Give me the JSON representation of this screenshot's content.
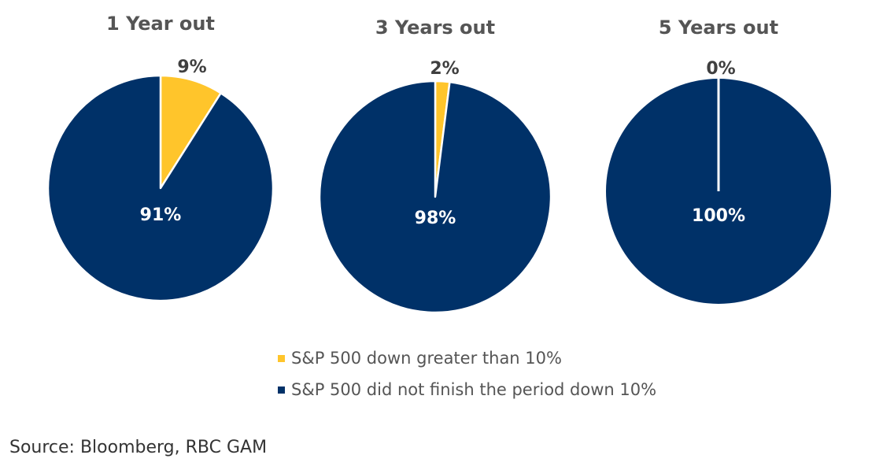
{
  "chart_data": [
    {
      "type": "pie",
      "title": "1 Year out",
      "slices": [
        {
          "label": "S&P 500 down greater than 10%",
          "value": 9,
          "display": "9%"
        },
        {
          "label": "S&P 500 did not finish the period down 10%",
          "value": 91,
          "display": "91%"
        }
      ]
    },
    {
      "type": "pie",
      "title": "3 Years out",
      "slices": [
        {
          "label": "S&P 500 down greater than 10%",
          "value": 2,
          "display": "2%"
        },
        {
          "label": "S&P 500 did not finish the period down 10%",
          "value": 98,
          "display": "98%"
        }
      ]
    },
    {
      "type": "pie",
      "title": "5 Years out",
      "slices": [
        {
          "label": "S&P 500 down greater than 10%",
          "value": 0,
          "display": "0%"
        },
        {
          "label": "S&P 500 did not finish the period down 10%",
          "value": 100,
          "display": "100%"
        }
      ]
    }
  ],
  "legend": {
    "items": [
      {
        "label": "S&P 500 down greater than 10%",
        "color": "#FFC52B"
      },
      {
        "label": "S&P 500 did not finish the period down 10%",
        "color": "#003168"
      }
    ]
  },
  "source": "Source: Bloomberg, RBC GAM"
}
